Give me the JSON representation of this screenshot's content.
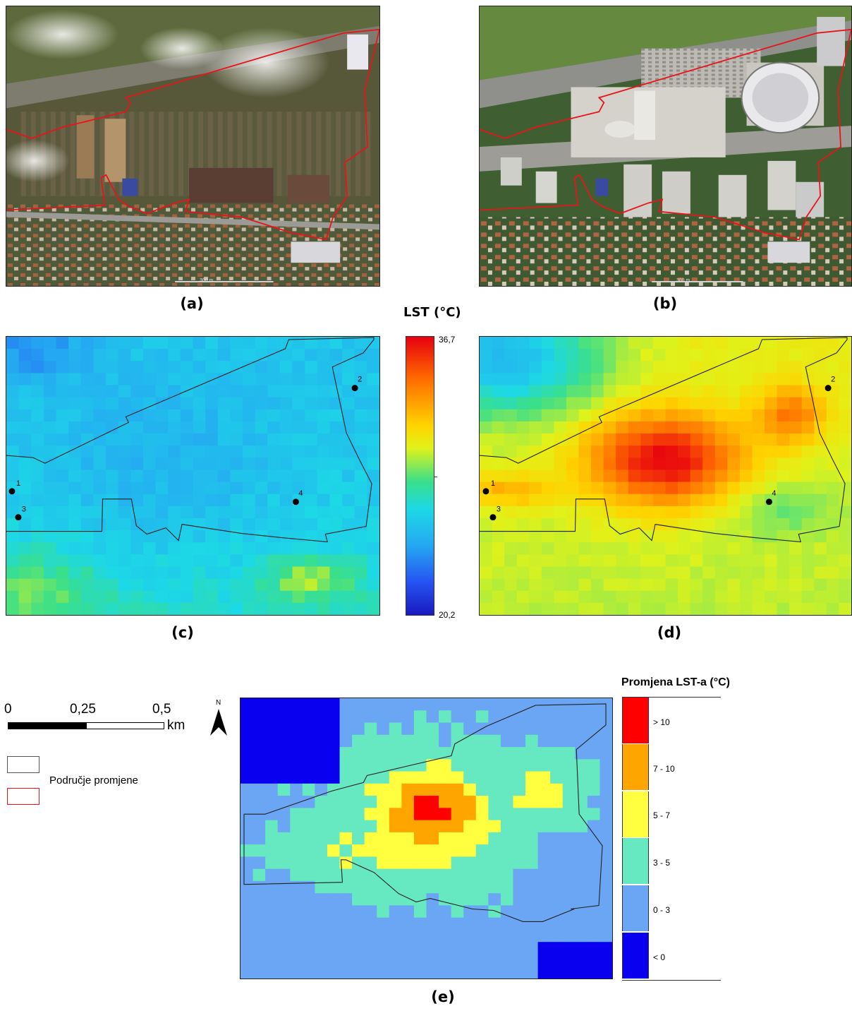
{
  "panels": {
    "a": {
      "label": "(a)",
      "scale_text": "300 m"
    },
    "b": {
      "label": "(b)",
      "scale_text": "300 m"
    },
    "c": {
      "label": "(c)"
    },
    "d": {
      "label": "(d)"
    },
    "e": {
      "label": "(e)"
    }
  },
  "lst_colorbar": {
    "title": "LST (°C)",
    "max": "36,7",
    "min": "20,2"
  },
  "points": [
    "1",
    "2",
    "3",
    "4"
  ],
  "change_legend": {
    "title": "Promjena LST-a (°C)",
    "classes": [
      {
        "label": "> 10",
        "color": "#ff0000"
      },
      {
        "label": "7 - 10",
        "color": "#ffa500"
      },
      {
        "label": "5 - 7",
        "color": "#ffff40"
      },
      {
        "label": "3 - 5",
        "color": "#66e8c0"
      },
      {
        "label": "0 - 3",
        "color": "#6aa6f4"
      },
      {
        "label": "< 0",
        "color": "#0a00f0"
      }
    ]
  },
  "scalebar": {
    "t0": "0",
    "t1": "0,25",
    "t2": "0,5",
    "unit": "km"
  },
  "north": {
    "label": "N"
  },
  "area_legend": {
    "label": "Područje promjene"
  },
  "colors": {
    "boundary_red": "#e8141a",
    "boundary_black": "#222222"
  }
}
